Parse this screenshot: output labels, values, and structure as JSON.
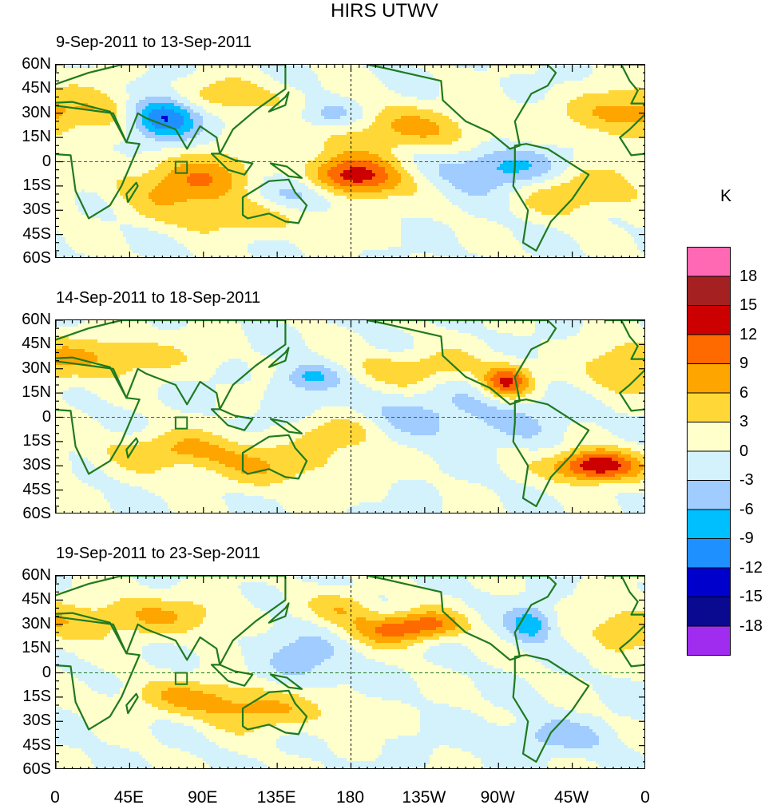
{
  "chart_data": {
    "type": "heatmap",
    "title": "HIRS UTWV",
    "panels": [
      {
        "title": "9-Sep-2011 to 13-Sep-2011",
        "features": [
          {
            "lon": 65,
            "lat": 28,
            "sx": 16,
            "sy": 10,
            "v": -16
          },
          {
            "lon": 30,
            "lat": 30,
            "sx": 30,
            "sy": 10,
            "v": 6
          },
          {
            "lon": 85,
            "lat": -13,
            "sx": 28,
            "sy": 12,
            "v": 9
          },
          {
            "lon": 180,
            "lat": -10,
            "sx": 22,
            "sy": 9,
            "v": 15
          },
          {
            "lon": 210,
            "lat": 20,
            "sx": 45,
            "sy": 10,
            "v": 6
          },
          {
            "lon": 150,
            "lat": -18,
            "sx": 20,
            "sy": 9,
            "v": -8
          },
          {
            "lon": 270,
            "lat": -5,
            "sx": 25,
            "sy": 10,
            "v": -8
          },
          {
            "lon": 320,
            "lat": -18,
            "sx": 30,
            "sy": 10,
            "v": 6
          },
          {
            "lon": 340,
            "lat": 30,
            "sx": 20,
            "sy": 10,
            "v": 6
          },
          {
            "lon": 100,
            "lat": 40,
            "sx": 30,
            "sy": 8,
            "v": 5
          },
          {
            "lon": 165,
            "lat": 28,
            "sx": 15,
            "sy": 7,
            "v": -6
          },
          {
            "lon": 120,
            "lat": -35,
            "sx": 40,
            "sy": 8,
            "v": 4
          }
        ]
      },
      {
        "title": "14-Sep-2011 to 18-Sep-2011",
        "features": [
          {
            "lon": 30,
            "lat": 38,
            "sx": 35,
            "sy": 9,
            "v": 6
          },
          {
            "lon": 275,
            "lat": 22,
            "sx": 10,
            "sy": 7,
            "v": 12
          },
          {
            "lon": 330,
            "lat": -30,
            "sx": 18,
            "sy": 7,
            "v": 16
          },
          {
            "lon": 75,
            "lat": -20,
            "sx": 30,
            "sy": 8,
            "v": 6
          },
          {
            "lon": 175,
            "lat": -10,
            "sx": 18,
            "sy": 8,
            "v": 6
          },
          {
            "lon": 220,
            "lat": 30,
            "sx": 30,
            "sy": 8,
            "v": 5
          },
          {
            "lon": 155,
            "lat": 25,
            "sx": 12,
            "sy": 6,
            "v": -7
          },
          {
            "lon": 240,
            "lat": 0,
            "sx": 50,
            "sy": 12,
            "v": -4
          },
          {
            "lon": 130,
            "lat": -30,
            "sx": 35,
            "sy": 9,
            "v": 5
          },
          {
            "lon": 345,
            "lat": 25,
            "sx": 18,
            "sy": 9,
            "v": 5
          }
        ]
      },
      {
        "title": "19-Sep-2011 to 23-Sep-2011",
        "features": [
          {
            "lon": 50,
            "lat": 35,
            "sx": 40,
            "sy": 9,
            "v": 6
          },
          {
            "lon": 90,
            "lat": -15,
            "sx": 35,
            "sy": 8,
            "v": 6
          },
          {
            "lon": 205,
            "lat": 27,
            "sx": 20,
            "sy": 7,
            "v": 9
          },
          {
            "lon": 230,
            "lat": 30,
            "sx": 15,
            "sy": 6,
            "v": 6
          },
          {
            "lon": 150,
            "lat": 10,
            "sx": 20,
            "sy": 15,
            "v": -4
          },
          {
            "lon": 290,
            "lat": 30,
            "sx": 10,
            "sy": 8,
            "v": -8
          },
          {
            "lon": 130,
            "lat": -25,
            "sx": 30,
            "sy": 8,
            "v": 5
          },
          {
            "lon": 345,
            "lat": 25,
            "sx": 20,
            "sy": 10,
            "v": 4
          },
          {
            "lon": 300,
            "lat": -40,
            "sx": 30,
            "sy": 8,
            "v": -4
          },
          {
            "lon": 175,
            "lat": 40,
            "sx": 15,
            "sy": 7,
            "v": 5
          }
        ]
      }
    ],
    "x_ticks": [
      "0",
      "45E",
      "90E",
      "135E",
      "180",
      "135W",
      "90W",
      "45W",
      "0"
    ],
    "y_ticks": [
      "60N",
      "45N",
      "30N",
      "15N",
      "0",
      "15S",
      "30S",
      "45S",
      "60S"
    ],
    "xlim": [
      0,
      360
    ],
    "ylim": [
      -60,
      60
    ],
    "colorbar": {
      "unit": "K",
      "levels": [
        -18,
        -15,
        -12,
        -9,
        -6,
        -3,
        0,
        3,
        6,
        9,
        12,
        15,
        18
      ],
      "tick_labels": [
        "18",
        "15",
        "12",
        "9",
        "6",
        "3",
        "0",
        "-3",
        "-6",
        "-9",
        "-12",
        "-15",
        "-18"
      ],
      "colors": [
        "#a02cf0",
        "#0a0a90",
        "#0000cd",
        "#1e90ff",
        "#00bfff",
        "#a0ccff",
        "#d4f2fb",
        "#ffffcc",
        "#ffd838",
        "#ffa500",
        "#ff6a00",
        "#cc0000",
        "#a52020",
        "#ff69b4"
      ]
    }
  }
}
